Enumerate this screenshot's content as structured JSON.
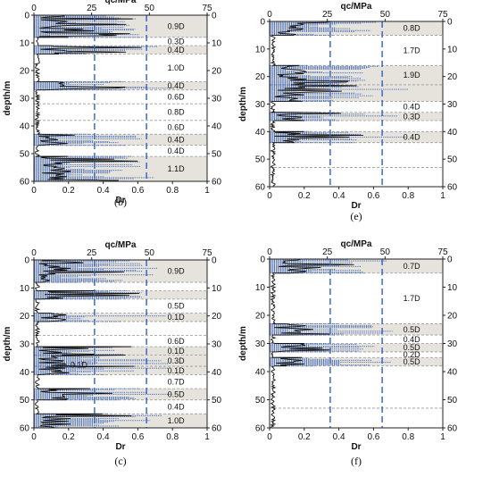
{
  "colors": {
    "sand_fill": "#e6e2dc",
    "dash_line": "#9a9a9a",
    "dr_limit_line": "#2f5fd0",
    "qc_line": "#111111",
    "dr_points": "#3a66b8",
    "axis": "#222222"
  },
  "chart_data": [
    {
      "type": "line",
      "caption": "(b)",
      "top_axis_label": "qc/MPa",
      "bottom_axis_label": "Dr",
      "ylabel": "depth/m",
      "top_ticks": [
        "0",
        "25",
        "50",
        "75"
      ],
      "bottom_ticks": [
        "0",
        "0.2",
        "0.4",
        "0.6",
        "0.8",
        "1"
      ],
      "y_ticks": [
        "0",
        "10",
        "20",
        "30",
        "40",
        "50",
        "60"
      ],
      "qc_range": [
        0,
        75
      ],
      "dr_range": [
        0,
        1
      ],
      "depth_range": [
        0,
        60
      ],
      "dr_limits": [
        0.35,
        0.65
      ],
      "layers": [
        {
          "top": 0,
          "bottom": 8,
          "label": "0.9D",
          "sand": true
        },
        {
          "top": 8,
          "bottom": 11,
          "label": "0.3D",
          "sand": false
        },
        {
          "top": 11,
          "bottom": 14,
          "label": "0.4D",
          "sand": true
        },
        {
          "top": 14,
          "bottom": 24,
          "label": "1.0D",
          "sand": false
        },
        {
          "top": 24,
          "bottom": 27,
          "label": "0.4D",
          "sand": true
        },
        {
          "top": 27,
          "bottom": 32,
          "label": "0.6D",
          "sand": false
        },
        {
          "top": 32,
          "bottom": 38,
          "label": "0.8D",
          "sand": false
        },
        {
          "top": 38,
          "bottom": 43,
          "label": "0.6D",
          "sand": false
        },
        {
          "top": 43,
          "bottom": 47,
          "label": "0.4D",
          "sand": true
        },
        {
          "top": 47,
          "bottom": 51,
          "label": "0.4D",
          "sand": false
        },
        {
          "top": 51,
          "bottom": 60,
          "label": "1.1D",
          "sand": true
        }
      ]
    },
    {
      "type": "line",
      "caption": "(e)",
      "top_axis_label": "qc/MPa",
      "bottom_axis_label": "Dr",
      "ylabel": "depth/m",
      "top_ticks": [
        "0",
        "25",
        "50",
        "75"
      ],
      "bottom_ticks": [
        "0",
        "0.2",
        "0.4",
        "0.6",
        "0.8",
        "1"
      ],
      "y_ticks": [
        "0",
        "10",
        "20",
        "30",
        "40",
        "50",
        "60"
      ],
      "qc_range": [
        0,
        75
      ],
      "dr_range": [
        0,
        1
      ],
      "depth_range": [
        0,
        60
      ],
      "dr_limits": [
        0.35,
        0.65
      ],
      "layers": [
        {
          "top": 0,
          "bottom": 5,
          "label": "0.8D",
          "sand": true
        },
        {
          "top": 5,
          "bottom": 16,
          "label": "1.7D",
          "sand": false
        },
        {
          "top": 16,
          "bottom": 23,
          "label": "1.9D",
          "sand": true
        },
        {
          "top": 23,
          "bottom": 29,
          "label": "",
          "sand": true
        },
        {
          "top": 29,
          "bottom": 33,
          "label": "0.4D",
          "sand": false
        },
        {
          "top": 33,
          "bottom": 36,
          "label": "0.3D",
          "sand": true
        },
        {
          "top": 36,
          "bottom": 40,
          "label": "",
          "sand": false
        },
        {
          "top": 40,
          "bottom": 44,
          "label": "0.4D",
          "sand": true
        },
        {
          "top": 44,
          "bottom": 53,
          "label": "",
          "sand": false
        },
        {
          "top": 53,
          "bottom": 60,
          "label": "",
          "sand": false
        }
      ]
    },
    {
      "type": "line",
      "caption": "(c)",
      "top_axis_label": "qc/MPa",
      "bottom_axis_label": "Dr",
      "ylabel": "depth/m",
      "top_ticks": [
        "0",
        "25",
        "50",
        "75"
      ],
      "bottom_ticks": [
        "0",
        "0.2",
        "0.4",
        "0.6",
        "0.8",
        "1"
      ],
      "y_ticks": [
        "0",
        "10",
        "20",
        "30",
        "40",
        "50",
        "60"
      ],
      "qc_range": [
        0,
        75
      ],
      "dr_range": [
        0,
        1
      ],
      "depth_range": [
        0,
        60
      ],
      "dr_limits": [
        0.35,
        0.65
      ],
      "layers": [
        {
          "top": 0,
          "bottom": 8,
          "label": "0.9D",
          "sand": true
        },
        {
          "top": 8,
          "bottom": 11,
          "label": "",
          "sand": false
        },
        {
          "top": 11,
          "bottom": 14,
          "label": "",
          "sand": true
        },
        {
          "top": 14,
          "bottom": 19,
          "label": "0.5D",
          "sand": false
        },
        {
          "top": 19,
          "bottom": 22,
          "label": "0.1D",
          "sand": true
        },
        {
          "top": 22,
          "bottom": 27,
          "label": "",
          "sand": false
        },
        {
          "top": 27,
          "bottom": 31,
          "label": "0.6D",
          "sand": false
        },
        {
          "top": 31,
          "bottom": 34,
          "label": "0.1D",
          "sand": true
        },
        {
          "top": 34,
          "bottom": 38,
          "label": "0.3D",
          "sand": true
        },
        {
          "top": 38,
          "bottom": 41,
          "label": "0.1D",
          "sand": true
        },
        {
          "top": 41,
          "bottom": 46,
          "label": "0.7D",
          "sand": false
        },
        {
          "top": 46,
          "bottom": 50,
          "label": "0.5D",
          "sand": true
        },
        {
          "top": 50,
          "bottom": 55,
          "label": "0.4D",
          "sand": false
        },
        {
          "top": 55,
          "bottom": 60,
          "label": "1.0D",
          "sand": true
        }
      ],
      "extra_labels": [
        {
          "depth": 37.5,
          "dr": 0.26,
          "label": "0.1D"
        }
      ]
    },
    {
      "type": "line",
      "caption": "(f)",
      "top_axis_label": "qc/MPa",
      "bottom_axis_label": "Dr",
      "ylabel": "depth/m",
      "top_ticks": [
        "0",
        "25",
        "50",
        "75"
      ],
      "bottom_ticks": [
        "0",
        "0.2",
        "0.4",
        "0.6",
        "0.8",
        "1"
      ],
      "y_ticks": [
        "0",
        "10",
        "20",
        "30",
        "40",
        "50",
        "60"
      ],
      "qc_range": [
        0,
        75
      ],
      "dr_range": [
        0,
        1
      ],
      "depth_range": [
        0,
        60
      ],
      "dr_limits": [
        0.35,
        0.65
      ],
      "layers": [
        {
          "top": 0,
          "bottom": 5,
          "label": "0.7D",
          "sand": true
        },
        {
          "top": 5,
          "bottom": 23,
          "label": "1.7D",
          "sand": false
        },
        {
          "top": 23,
          "bottom": 27,
          "label": "0.5D",
          "sand": true
        },
        {
          "top": 27,
          "bottom": 30,
          "label": "0.4D",
          "sand": false
        },
        {
          "top": 30,
          "bottom": 33,
          "label": "0.5D",
          "sand": true
        },
        {
          "top": 33,
          "bottom": 35,
          "label": "0.2D",
          "sand": false
        },
        {
          "top": 35,
          "bottom": 38,
          "label": "0.5D",
          "sand": true
        },
        {
          "top": 38,
          "bottom": 53,
          "label": "",
          "sand": false
        },
        {
          "top": 53,
          "bottom": 60,
          "label": "",
          "sand": false
        }
      ]
    }
  ]
}
